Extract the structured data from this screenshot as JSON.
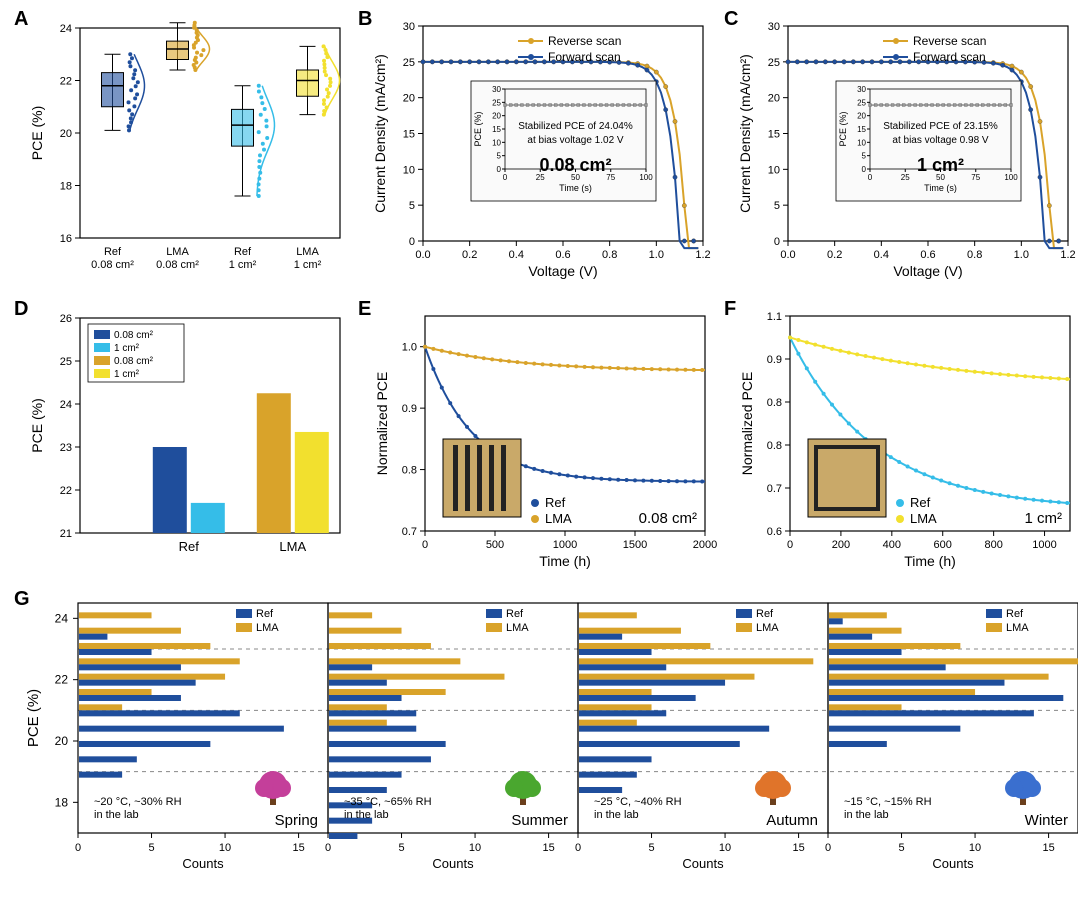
{
  "panel_labels": {
    "A": "A",
    "B": "B",
    "C": "C",
    "D": "D",
    "E": "E",
    "F": "F",
    "G": "G"
  },
  "colors": {
    "dark_blue": "#1f4e9c",
    "light_blue": "#35bde8",
    "dark_yellow": "#d9a32a",
    "light_yellow": "#f2e02e",
    "grid": "#cccccc",
    "bg": "#ffffff"
  },
  "A": {
    "ylabel": "PCE (%)",
    "ylim": [
      16,
      24
    ],
    "ytick_step": 2,
    "xlabels": [
      "Ref\n0.08 cm²",
      "LMA\n0.08 cm²",
      "Ref\n1 cm²",
      "LMA\n1 cm²"
    ],
    "boxes": [
      {
        "q1": 21.0,
        "med": 21.8,
        "q3": 22.3,
        "whisker_lo": 20.1,
        "whisker_hi": 23.0,
        "color": "#1f4e9c",
        "scatter_color": "#1f4e9c"
      },
      {
        "q1": 22.8,
        "med": 23.2,
        "q3": 23.5,
        "whisker_lo": 22.4,
        "whisker_hi": 24.2,
        "color": "#d9a32a",
        "scatter_color": "#d9a32a"
      },
      {
        "q1": 19.5,
        "med": 20.3,
        "q3": 20.9,
        "whisker_lo": 17.6,
        "whisker_hi": 21.8,
        "color": "#35bde8",
        "scatter_color": "#35bde8"
      },
      {
        "q1": 21.4,
        "med": 22.0,
        "q3": 22.4,
        "whisker_lo": 20.7,
        "whisker_hi": 23.3,
        "color": "#f2e02e",
        "scatter_color": "#f2e02e"
      }
    ]
  },
  "B": {
    "ylabel": "Current Density (mA/cm²)",
    "xlabel": "Voltage (V)",
    "xlim": [
      0,
      1.2
    ],
    "ylim": [
      0,
      30
    ],
    "xtick_step": 0.2,
    "ytick_step": 5,
    "legend": [
      {
        "label": "Reverse scan",
        "color": "#d9a32a"
      },
      {
        "label": "Forward scan",
        "color": "#1f4e9c"
      }
    ],
    "inset": {
      "title": "PCE (%)",
      "xlabel": "Time (s)",
      "xlim": [
        0,
        100
      ],
      "ylim": [
        0,
        30
      ],
      "xtick_step": 25,
      "ytick_step": 5,
      "line1": "Stabilized PCE of 24.04%",
      "line2": "at bias voltage 1.02 V",
      "big": "0.08 cm²"
    }
  },
  "C": {
    "ylabel": "Current Density (mA/cm²)",
    "xlabel": "Voltage (V)",
    "xlim": [
      0,
      1.2
    ],
    "ylim": [
      0,
      30
    ],
    "xtick_step": 0.2,
    "ytick_step": 5,
    "legend": [
      {
        "label": "Reverse scan",
        "color": "#d9a32a"
      },
      {
        "label": "Forward scan",
        "color": "#1f4e9c"
      }
    ],
    "inset": {
      "title": "PCE (%)",
      "xlabel": "Time (s)",
      "xlim": [
        0,
        100
      ],
      "ylim": [
        0,
        30
      ],
      "xtick_step": 25,
      "ytick_step": 5,
      "line1": "Stabilized PCE of 23.15%",
      "line2": "at bias voltage 0.98 V",
      "big": "1 cm²"
    }
  },
  "D": {
    "ylabel": "PCE (%)",
    "ylim": [
      21,
      26
    ],
    "ytick_step": 1,
    "xticks": [
      "Ref",
      "LMA"
    ],
    "legend": [
      {
        "label": "0.08 cm²",
        "color": "#1f4e9c"
      },
      {
        "label": "1 cm²",
        "color": "#35bde8"
      },
      {
        "label": "0.08 cm²",
        "color": "#d9a32a"
      },
      {
        "label": "1 cm²",
        "color": "#f2e02e"
      }
    ],
    "bars": [
      {
        "group": "Ref",
        "vals": [
          23.0,
          21.7
        ],
        "cols": [
          "#1f4e9c",
          "#35bde8"
        ]
      },
      {
        "group": "LMA",
        "vals": [
          24.25,
          23.35
        ],
        "cols": [
          "#d9a32a",
          "#f2e02e"
        ]
      }
    ]
  },
  "E": {
    "ylabel": "Normalized PCE",
    "xlabel": "Time (h)",
    "xlim": [
      0,
      2000
    ],
    "ylim": [
      0.7,
      1.05
    ],
    "xtick_step": 500,
    "ytick_step": 0.1,
    "legend": [
      {
        "label": "Ref",
        "color": "#1f4e9c"
      },
      {
        "label": "LMA",
        "color": "#d9a32a"
      }
    ],
    "note": "0.08 cm²"
  },
  "F": {
    "ylabel": "Normalized PCE",
    "xlabel": "Time (h)",
    "xlim": [
      0,
      1100
    ],
    "ylim": [
      0.55,
      1.05
    ],
    "xtick_step": 200,
    "ytick_step": 0.1,
    "legend": [
      {
        "label": "Ref",
        "color": "#35bde8"
      },
      {
        "label": "LMA",
        "color": "#f2e02e"
      }
    ],
    "note": "1 cm²"
  },
  "G": {
    "ylabel": "PCE (%)",
    "xlabel": "Counts",
    "xlim": [
      0,
      17
    ],
    "ylim": [
      17,
      24.5
    ],
    "xtick_step": 5,
    "ytick_step": 2,
    "legend": [
      {
        "label": "Ref",
        "color": "#1f4e9c"
      },
      {
        "label": "LMA",
        "color": "#d9a32a"
      }
    ],
    "bins": [
      24,
      23.5,
      23,
      22.5,
      22,
      21.5,
      21,
      20.5,
      20,
      19.5,
      19,
      18.5,
      18,
      17.5,
      17
    ],
    "subpanels": [
      {
        "name": "Spring",
        "conditions": "~20 °C, ~30% RH\nin the lab",
        "ref": [
          0,
          2,
          5,
          7,
          8,
          7,
          11,
          14,
          9,
          4,
          3,
          0,
          0,
          0,
          0
        ],
        "lma": [
          5,
          7,
          9,
          11,
          10,
          5,
          3,
          0,
          0,
          0,
          0,
          0,
          0,
          0,
          0
        ],
        "icon_color": "#c43f9a"
      },
      {
        "name": "Summer",
        "conditions": "~35 °C, ~65% RH\nin the lab",
        "ref": [
          0,
          0,
          0,
          3,
          4,
          5,
          6,
          6,
          8,
          7,
          5,
          4,
          3,
          3,
          2
        ],
        "lma": [
          3,
          5,
          7,
          9,
          12,
          8,
          4,
          4,
          0,
          0,
          0,
          0,
          0,
          0,
          0
        ],
        "icon_color": "#4aa72f"
      },
      {
        "name": "Autumn",
        "conditions": "~25 °C, ~40% RH\nin the lab",
        "ref": [
          0,
          3,
          5,
          6,
          10,
          8,
          6,
          13,
          11,
          5,
          4,
          3,
          0,
          0,
          0
        ],
        "lma": [
          4,
          7,
          9,
          16,
          12,
          5,
          5,
          4,
          0,
          0,
          0,
          0,
          0,
          0,
          0
        ],
        "icon_color": "#e0742a"
      },
      {
        "name": "Winter",
        "conditions": "~15 °C, ~15% RH\nin the lab",
        "ref": [
          1,
          3,
          5,
          8,
          12,
          16,
          14,
          9,
          4,
          0,
          0,
          0,
          0,
          0,
          0
        ],
        "lma": [
          4,
          5,
          9,
          17,
          15,
          10,
          5,
          0,
          0,
          0,
          0,
          0,
          0,
          0,
          0
        ],
        "icon_color": "#3a6fcf"
      }
    ]
  }
}
